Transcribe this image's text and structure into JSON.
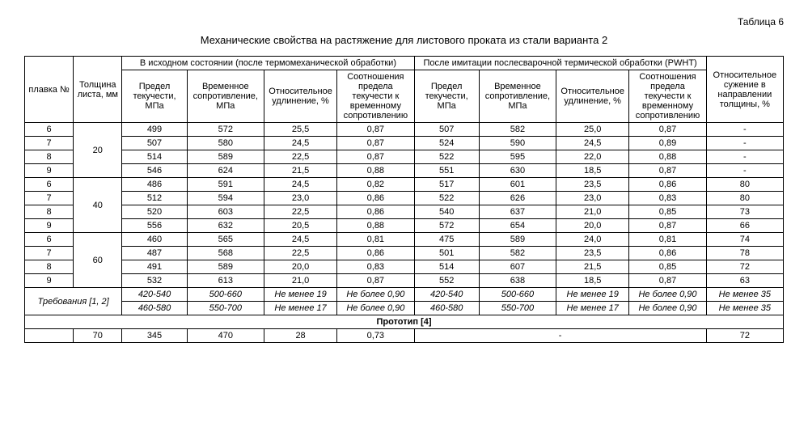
{
  "tableLabel": "Таблица 6",
  "title": "Механические свойства на растяжение для листового проката из стали варианта 2",
  "headers": {
    "melt": "плавка №",
    "thickness": "Толщина листа, мм",
    "groupA": "В исходном состоянии (после термомеханической обработки)",
    "groupB": "После имитации послесварочной термической обработки (PWHT)",
    "yield": "Предел текучести, МПа",
    "temp": "Временное сопротивление, МПа",
    "elong": "Относительное удлинение, %",
    "ratio": "Соотношения предела текучести к временному сопротивлению",
    "reduction": "Относительное сужение в направлении толщины, %"
  },
  "thicknesses": [
    "20",
    "40",
    "60"
  ],
  "rows": [
    [
      "6",
      "499",
      "572",
      "25,5",
      "0,87",
      "507",
      "582",
      "25,0",
      "0,87",
      "-"
    ],
    [
      "7",
      "507",
      "580",
      "24,5",
      "0,87",
      "524",
      "590",
      "24,5",
      "0,89",
      "-"
    ],
    [
      "8",
      "514",
      "589",
      "22,5",
      "0,87",
      "522",
      "595",
      "22,0",
      "0,88",
      "-"
    ],
    [
      "9",
      "546",
      "624",
      "21,5",
      "0,88",
      "551",
      "630",
      "18,5",
      "0,87",
      "-"
    ],
    [
      "6",
      "486",
      "591",
      "24,5",
      "0,82",
      "517",
      "601",
      "23,5",
      "0,86",
      "80"
    ],
    [
      "7",
      "512",
      "594",
      "23,0",
      "0,86",
      "522",
      "626",
      "23,0",
      "0,83",
      "80"
    ],
    [
      "8",
      "520",
      "603",
      "22,5",
      "0,86",
      "540",
      "637",
      "21,0",
      "0,85",
      "73"
    ],
    [
      "9",
      "556",
      "632",
      "20,5",
      "0,88",
      "572",
      "654",
      "20,0",
      "0,87",
      "66"
    ],
    [
      "6",
      "460",
      "565",
      "24,5",
      "0,81",
      "475",
      "589",
      "24,0",
      "0,81",
      "74"
    ],
    [
      "7",
      "487",
      "568",
      "22,5",
      "0,86",
      "501",
      "582",
      "23,5",
      "0,86",
      "78"
    ],
    [
      "8",
      "491",
      "589",
      "20,0",
      "0,83",
      "514",
      "607",
      "21,5",
      "0,85",
      "72"
    ],
    [
      "9",
      "532",
      "613",
      "21,0",
      "0,87",
      "552",
      "638",
      "18,5",
      "0,87",
      "63"
    ]
  ],
  "reqLabel": "Требования [1, 2]",
  "reqRows": [
    [
      "420-540",
      "500-660",
      "Не менее 19",
      "Не более 0,90",
      "420-540",
      "500-660",
      "Не менее 19",
      "Не более 0,90",
      "Не менее 35"
    ],
    [
      "460-580",
      "550-700",
      "Не менее 17",
      "Не более 0,90",
      "460-580",
      "550-700",
      "Не менее 17",
      "Не более 0,90",
      "Не менее 35"
    ]
  ],
  "protoLabel": "Прототип [4]",
  "protoRow": [
    "70",
    "345",
    "470",
    "28",
    "0,73",
    "-",
    "72"
  ]
}
